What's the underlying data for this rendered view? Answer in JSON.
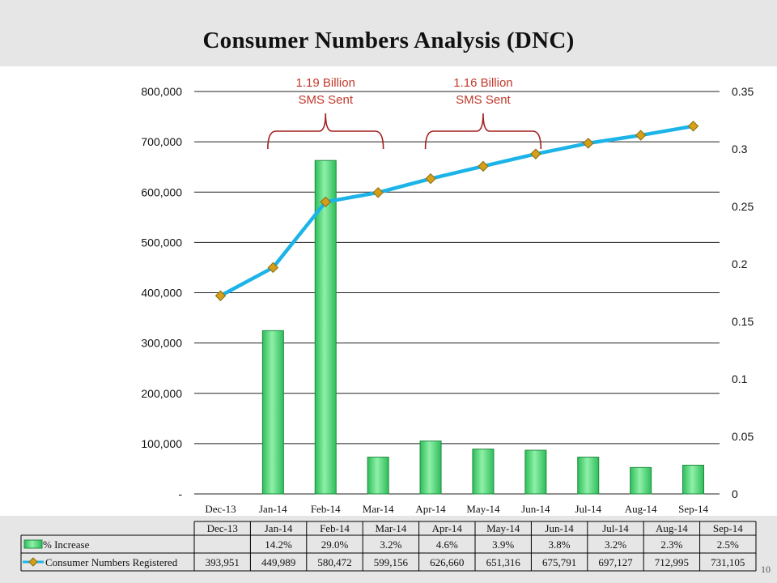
{
  "slide": {
    "title": "Consumer Numbers Analysis  (DNC)",
    "page_number": "10"
  },
  "annotations": [
    {
      "label": "1.19 Billion\nSMS Sent",
      "from_category": "Jan-14",
      "to_category": "Mar-14"
    },
    {
      "label": "1.16 Billion\nSMS Sent",
      "from_category": "Apr-14",
      "to_category": "Jun-14"
    }
  ],
  "chart_data": {
    "type": "bar",
    "categories": [
      "Dec-13",
      "Jan-14",
      "Feb-14",
      "Mar-14",
      "Apr-14",
      "May-14",
      "Jun-14",
      "Jul-14",
      "Aug-14",
      "Sep-14"
    ],
    "left_axis": {
      "ylim": [
        0,
        800000
      ],
      "ticks": [
        0,
        100000,
        200000,
        300000,
        400000,
        500000,
        600000,
        700000,
        800000
      ],
      "tick_labels": [
        "-",
        "100,000",
        "200,000",
        "300,000",
        "400,000",
        "500,000",
        "600,000",
        "700,000",
        "800,000"
      ]
    },
    "right_axis": {
      "ylim": [
        0,
        0.35
      ],
      "ticks": [
        0,
        0.05,
        0.1,
        0.15,
        0.2,
        0.25,
        0.3,
        0.35
      ],
      "tick_labels": [
        "0",
        "0.05",
        "0.1",
        "0.15",
        "0.2",
        "0.25",
        "0.3",
        "0.35"
      ]
    },
    "grid": true,
    "series": [
      {
        "name": "% Increase",
        "kind": "bar",
        "axis": "right",
        "color": "#3fd86f",
        "values": [
          null,
          0.142,
          0.29,
          0.032,
          0.046,
          0.039,
          0.038,
          0.032,
          0.023,
          0.025
        ],
        "table_labels": [
          "",
          "14.2%",
          "29.0%",
          "3.2%",
          "4.6%",
          "3.9%",
          "3.8%",
          "3.2%",
          "2.3%",
          "2.5%"
        ]
      },
      {
        "name": "Consumer Numbers Registered",
        "kind": "line",
        "axis": "left",
        "color": "#1cb4e8",
        "marker_color": "#d4a017",
        "values": [
          393951,
          449989,
          580472,
          599156,
          626660,
          651316,
          675791,
          697127,
          712995,
          731105
        ],
        "table_labels": [
          "393,951",
          "449,989",
          "580,472",
          "599,156",
          "626,660",
          "651,316",
          "675,791",
          "697,127",
          "712,995",
          "731,105"
        ]
      }
    ]
  }
}
